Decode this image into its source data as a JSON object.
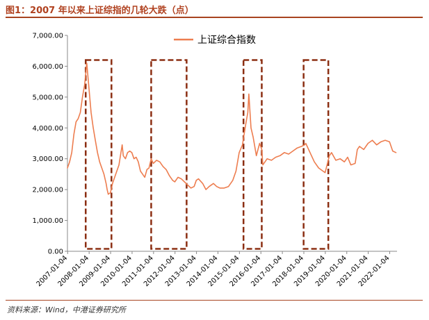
{
  "figure": {
    "title": "图1：2007 年以来上证综指的几轮大跌（点）",
    "source": "资料来源：Wind，中港证券研究所"
  },
  "colors": {
    "line": "#ed7d4f",
    "highlight_box": "#8b2e12",
    "title": "#b0411f",
    "rule": "#a8431f"
  },
  "chart_data": {
    "type": "line",
    "title": "",
    "xlabel": "",
    "ylabel": "",
    "ylim": [
      0,
      7000
    ],
    "yticks": [
      "0.00",
      "1,000.00",
      "2,000.00",
      "3,000.00",
      "4,000.00",
      "5,000.00",
      "6,000.00",
      "7,000.00"
    ],
    "xticks": [
      "2007-01-04",
      "2008-01-04",
      "2009-01-04",
      "2010-01-04",
      "2011-01-04",
      "2012-01-04",
      "2013-01-04",
      "2014-01-04",
      "2015-01-04",
      "2016-01-04",
      "2017-01-04",
      "2018-01-04",
      "2019-01-04",
      "2020-01-04",
      "2021-01-04",
      "2022-01-04"
    ],
    "legend_position": "top-center",
    "series": [
      {
        "name": "上证综合指数",
        "x": [
          2007.0,
          2007.1,
          2007.2,
          2007.3,
          2007.4,
          2007.5,
          2007.6,
          2007.7,
          2007.8,
          2007.9,
          2008.0,
          2008.1,
          2008.2,
          2008.3,
          2008.4,
          2008.5,
          2008.6,
          2008.7,
          2008.8,
          2008.85,
          2008.9,
          2009.0,
          2009.1,
          2009.2,
          2009.3,
          2009.4,
          2009.55,
          2009.6,
          2009.7,
          2009.8,
          2009.9,
          2010.0,
          2010.1,
          2010.2,
          2010.3,
          2010.4,
          2010.5,
          2010.6,
          2010.7,
          2010.8,
          2010.9,
          2011.0,
          2011.15,
          2011.3,
          2011.45,
          2011.6,
          2011.75,
          2011.9,
          2012.0,
          2012.15,
          2012.3,
          2012.45,
          2012.6,
          2012.75,
          2012.9,
          2013.0,
          2013.1,
          2013.3,
          2013.45,
          2013.6,
          2013.8,
          2013.95,
          2014.1,
          2014.3,
          2014.5,
          2014.7,
          2014.85,
          2015.0,
          2015.15,
          2015.3,
          2015.4,
          2015.45,
          2015.55,
          2015.65,
          2015.8,
          2015.95,
          2016.05,
          2016.1,
          2016.3,
          2016.5,
          2016.7,
          2016.9,
          2017.1,
          2017.3,
          2017.5,
          2017.7,
          2017.9,
          2018.05,
          2018.1,
          2018.3,
          2018.5,
          2018.7,
          2018.9,
          2019.0,
          2019.2,
          2019.3,
          2019.5,
          2019.7,
          2019.9,
          2020.05,
          2020.2,
          2020.4,
          2020.5,
          2020.6,
          2020.8,
          2021.0,
          2021.2,
          2021.4,
          2021.6,
          2021.8,
          2022.0,
          2022.15,
          2022.3
        ],
        "values": [
          2700,
          2900,
          3200,
          3800,
          4200,
          4300,
          4500,
          5000,
          5400,
          6100,
          5300,
          4500,
          4000,
          3600,
          3200,
          2900,
          2700,
          2500,
          2200,
          2000,
          1850,
          1900,
          2200,
          2400,
          2600,
          2800,
          3450,
          3100,
          3000,
          3200,
          3250,
          3200,
          3000,
          3050,
          2900,
          2600,
          2500,
          2400,
          2650,
          2700,
          3000,
          2850,
          2950,
          2900,
          2750,
          2650,
          2450,
          2300,
          2250,
          2400,
          2350,
          2250,
          2150,
          2050,
          2100,
          2300,
          2350,
          2200,
          2000,
          2100,
          2200,
          2100,
          2050,
          2050,
          2100,
          2300,
          2600,
          3200,
          3450,
          4100,
          4500,
          5100,
          4000,
          3700,
          3100,
          3500,
          3300,
          2800,
          3000,
          2950,
          3050,
          3100,
          3200,
          3150,
          3250,
          3350,
          3400,
          3450,
          3500,
          3200,
          2900,
          2700,
          2600,
          2550,
          3100,
          3200,
          2950,
          3000,
          2900,
          3050,
          2800,
          2850,
          3300,
          3400,
          3300,
          3500,
          3600,
          3450,
          3550,
          3600,
          3550,
          3250,
          3200
        ]
      }
    ],
    "highlight_periods": [
      {
        "start": 2007.85,
        "end": 2009.05
      },
      {
        "start": 2010.9,
        "end": 2012.55
      },
      {
        "start": 2015.2,
        "end": 2016.05
      },
      {
        "start": 2018.0,
        "end": 2019.15
      }
    ]
  }
}
